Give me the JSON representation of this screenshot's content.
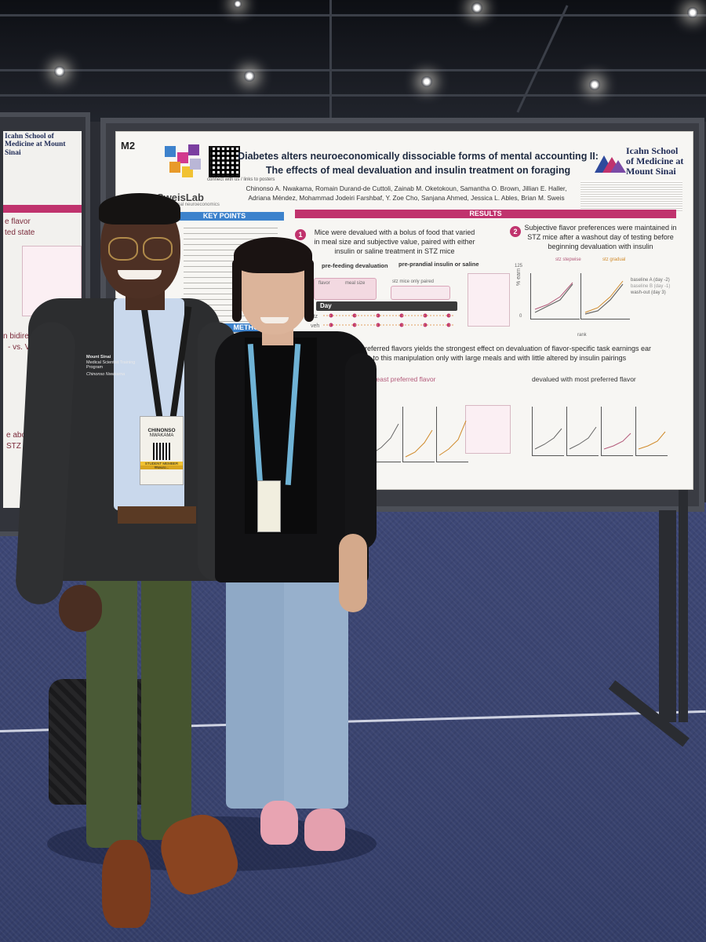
{
  "poster": {
    "booth_tag": "M2",
    "lab_name": "SweisLab",
    "lab_subtitle": "Translational neuroeconomics",
    "qr_caption": "connect with us / links to posters",
    "title_line1": "Diabetes alters neuroeconomically dissociable forms of mental accounting II:",
    "title_line2": "The effects of meal devaluation and insulin treatment on foraging",
    "authors_line1": "Chinonso A. Nwakama, Romain Durand-de Cuttoli, Zainab M. Oketokoun, Samantha O. Brown, Jillian E. Haller,",
    "authors_line2": "Adriana Méndez, Mohammad Jodeiri Farshbaf, Y. Zoe Cho, Sanjana Ahmed, Jessica L. Ables, Brian M. Sweis",
    "institution_line1": "Icahn School",
    "institution_line2": "of Medicine at",
    "institution_line3": "Mount Sinai",
    "key_points_heading": "KEY POINTS",
    "methods_heading": "METHODS",
    "results_heading": "RESULTS",
    "result1_number": "1",
    "result1_text": "Mice were devalued with a bolus of food that varied in meal size and subjective value, paired with either insulin or saline treatment in STZ mice",
    "result2_number": "2",
    "result2_text": "Subjective flavor preferences were maintained in STZ mice after a washout day of testing before beginning devaluation with insulin",
    "prefeeding_label": "pre-feeding devaluation",
    "preprandial_label": "pre-prandial insulin or saline",
    "flavor_label": "flavor",
    "meal_size_label": "meal size",
    "stz_only_label": "stz mice only paired",
    "day_label": "Day",
    "stz_label": "stz",
    "veh_label": "veh",
    "pct_earn_label": "% earn",
    "y_tick_top": "125",
    "y_tick_bottom": "0",
    "rank_label": "rank",
    "stz_stepwise": "stz stepwise",
    "stz_gradual": "stz gradual",
    "legend_baseline_a": "baseline A (day -2)",
    "legend_baseline_b": "baseline B (day -1)",
    "legend_washout": "wash-out (day 3)",
    "finding3_text": "most preferred flavors yields the strongest effect on devaluation of flavor-specific task earnings ear sensitive to this manipulation only with large meals and with little altered by insulin pairings",
    "least_preferred_label": "with least preferred flavor",
    "most_preferred_label": "devalued with most preferred flavor",
    "left_poster_institution": "Icahn School of Medicine at Mount Sinai",
    "left_poster_heading1": "e flavor",
    "left_poster_heading2": "ted state",
    "left_poster_heading3": "n bidirectional shif",
    "left_poster_heading4": "- vs. VEH-tr",
    "left_poster_heading5": "e abolis",
    "left_poster_heading6": "STZ tre"
  },
  "people": {
    "man_jacket_logo": "Mount Sinai",
    "man_jacket_program": "Medical Scientist Training Program",
    "man_jacket_name": "Chinonso Nwakama",
    "man_badge_first": "CHINONSO",
    "man_badge_last": "NWAKAMA",
    "man_badge_tag": "STUDENT MEMBER",
    "man_badge_hashtag": "#Neuro..."
  },
  "colors": {
    "accent_blue": "#3d82cc",
    "accent_magenta": "#c0336d",
    "carpet": "#3a4470"
  }
}
